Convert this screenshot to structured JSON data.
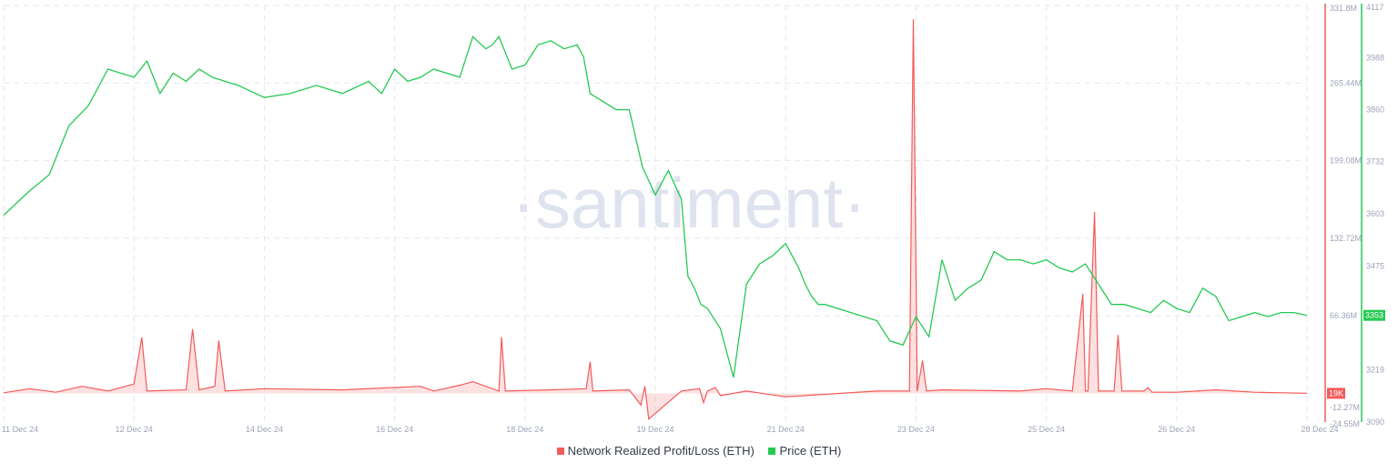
{
  "watermark": "·santiment·",
  "legend": {
    "profit_loss": "Network Realized Profit/Loss (ETH)",
    "price": "Price (ETH)"
  },
  "colors": {
    "profit_loss": "#f25b5b",
    "price": "#26c953",
    "grid": "#e4e7ee",
    "axis_text": "#9da4b8"
  },
  "chart_data": {
    "type": "line",
    "title": "",
    "grid": true,
    "legend_position": "bottom-center",
    "x_ticks": [
      "11 Dec 24",
      "12 Dec 24",
      "14 Dec 24",
      "16 Dec 24",
      "18 Dec 24",
      "19 Dec 24",
      "21 Dec 24",
      "23 Dec 24",
      "25 Dec 24",
      "26 Dec 24",
      "28 Dec 24"
    ],
    "y_left": {
      "series": "Network Realized Profit/Loss (ETH)",
      "ticks": [
        "331.8M",
        "265.44M",
        "199.08M",
        "132.72M",
        "66.36M",
        "-12.27M",
        "-24.55M"
      ],
      "range": [
        -24550000,
        331800000
      ],
      "current_label": "19K"
    },
    "y_right": {
      "series": "Price (ETH)",
      "ticks": [
        "4117",
        "3988",
        "3860",
        "3732",
        "3603",
        "3475",
        "3219",
        "3090"
      ],
      "range": [
        3090,
        4117
      ],
      "current_label": "3353"
    },
    "series": [
      {
        "name": "Price (ETH)",
        "axis": "right",
        "x": [
          0,
          0.02,
          0.035,
          0.05,
          0.065,
          0.08,
          0.09,
          0.1,
          0.11,
          0.12,
          0.13,
          0.14,
          0.15,
          0.16,
          0.18,
          0.2,
          0.22,
          0.24,
          0.26,
          0.28,
          0.29,
          0.3,
          0.31,
          0.32,
          0.33,
          0.35,
          0.36,
          0.37,
          0.375,
          0.38,
          0.39,
          0.4,
          0.41,
          0.42,
          0.43,
          0.44,
          0.445,
          0.45,
          0.46,
          0.47,
          0.48,
          0.49,
          0.5,
          0.51,
          0.52,
          0.525,
          0.53,
          0.535,
          0.54,
          0.55,
          0.56,
          0.57,
          0.58,
          0.59,
          0.6,
          0.61,
          0.615,
          0.62,
          0.625,
          0.63,
          0.64,
          0.65,
          0.66,
          0.67,
          0.68,
          0.69,
          0.7,
          0.71,
          0.72,
          0.73,
          0.74,
          0.75,
          0.76,
          0.77,
          0.78,
          0.79,
          0.8,
          0.81,
          0.82,
          0.83,
          0.84,
          0.85,
          0.86,
          0.87,
          0.88,
          0.89,
          0.9,
          0.91,
          0.92,
          0.93,
          0.94,
          0.95,
          0.96,
          0.97,
          0.98,
          0.99,
          1.0
        ],
        "values": [
          3600,
          3660,
          3700,
          3820,
          3870,
          3960,
          3950,
          3940,
          3980,
          3900,
          3950,
          3930,
          3960,
          3940,
          3920,
          3890,
          3900,
          3920,
          3900,
          3930,
          3900,
          3960,
          3930,
          3940,
          3960,
          3940,
          4040,
          4010,
          4020,
          4040,
          3960,
          3970,
          4020,
          4030,
          4010,
          4020,
          3990,
          3900,
          3880,
          3860,
          3860,
          3720,
          3650,
          3710,
          3640,
          3450,
          3420,
          3380,
          3370,
          3320,
          3200,
          3430,
          3480,
          3500,
          3530,
          3470,
          3430,
          3400,
          3380,
          3380,
          3370,
          3360,
          3350,
          3340,
          3290,
          3280,
          3350,
          3300,
          3490,
          3390,
          3420,
          3440,
          3510,
          3490,
          3490,
          3480,
          3490,
          3470,
          3460,
          3480,
          3430,
          3380,
          3380,
          3370,
          3360,
          3390,
          3370,
          3360,
          3420,
          3400,
          3340,
          3350,
          3360,
          3350,
          3360,
          3360,
          3353
        ]
      },
      {
        "name": "Network Realized Profit/Loss (ETH)",
        "axis": "left",
        "x": [
          0,
          0.02,
          0.04,
          0.06,
          0.08,
          0.1,
          0.106,
          0.11,
          0.14,
          0.145,
          0.15,
          0.162,
          0.165,
          0.17,
          0.2,
          0.26,
          0.32,
          0.33,
          0.35,
          0.36,
          0.38,
          0.382,
          0.385,
          0.42,
          0.447,
          0.45,
          0.452,
          0.48,
          0.489,
          0.492,
          0.495,
          0.52,
          0.534,
          0.537,
          0.54,
          0.546,
          0.55,
          0.57,
          0.6,
          0.67,
          0.695,
          0.698,
          0.701,
          0.705,
          0.708,
          0.72,
          0.78,
          0.8,
          0.82,
          0.828,
          0.83,
          0.832,
          0.837,
          0.84,
          0.852,
          0.855,
          0.858,
          0.875,
          0.878,
          0.881,
          0.9,
          0.93,
          0.96,
          1.0
        ],
        "values": [
          500000,
          4000000,
          1000000,
          6000000,
          2000000,
          8000000,
          48000000,
          2000000,
          3000000,
          55000000,
          3000000,
          6000000,
          45000000,
          2000000,
          4000000,
          3000000,
          6000000,
          2000000,
          7000000,
          10000000,
          2000000,
          48000000,
          2000000,
          3000000,
          4000000,
          27000000,
          2000000,
          3000000,
          -10000000,
          6000000,
          -22000000,
          2000000,
          4000000,
          -8000000,
          2000000,
          5000000,
          -2000000,
          2000000,
          -3000000,
          2000000,
          2000000,
          320000000,
          2000000,
          28000000,
          2000000,
          3000000,
          2000000,
          4000000,
          2000000,
          85000000,
          2000000,
          2000000,
          155000000,
          2000000,
          2000000,
          50000000,
          2000000,
          2000000,
          5000000,
          1000000,
          1000000,
          3000000,
          1000000,
          19000
        ]
      }
    ]
  }
}
